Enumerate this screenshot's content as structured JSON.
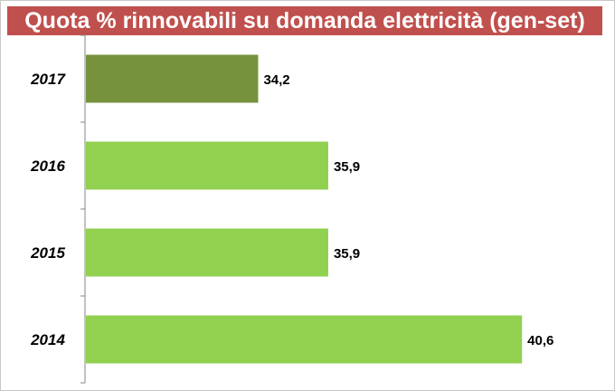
{
  "chart_data": {
    "type": "bar",
    "orientation": "horizontal",
    "title": "Quota % rinnovabili su domanda elettricità (gen-set)",
    "categories": [
      "2017",
      "2016",
      "2015",
      "2014"
    ],
    "values": [
      34.2,
      35.9,
      35.9,
      40.6
    ],
    "value_labels": [
      "34,2",
      "35,9",
      "35,9",
      "40,6"
    ],
    "xlim": [
      30,
      42
    ],
    "grid": false,
    "legend": "none",
    "colors": {
      "highlight_bar": "#76923c",
      "bar": "#92d050",
      "title_background": "#c0504d",
      "title_text": "#ffffff",
      "axis": "#868686"
    },
    "highlight_index": 0
  }
}
